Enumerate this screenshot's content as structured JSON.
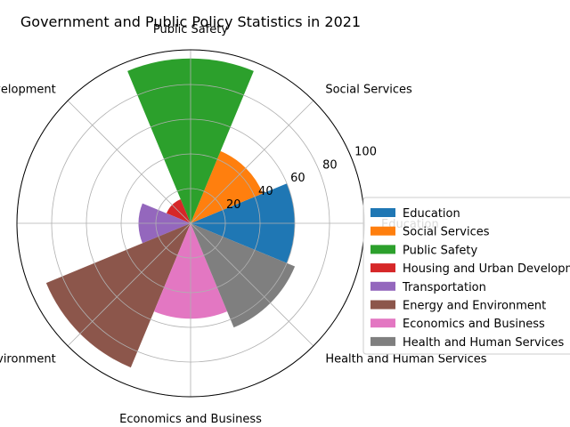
{
  "chart_data": {
    "type": "bar",
    "subtype": "polar",
    "title": "Government and Public Policy Statistics in 2021",
    "categories": [
      "Education",
      "Social Services",
      "Public Safety",
      "Housing and Urban Development",
      "Transportation",
      "Energy and Environment",
      "Economics and Business",
      "Health and Human Services"
    ],
    "values": [
      60,
      45,
      95,
      15,
      30,
      90,
      55,
      65
    ],
    "colors": [
      "#1f77b4",
      "#ff7f0e",
      "#2ca02c",
      "#d62728",
      "#9467bd",
      "#8c564b",
      "#e377c2",
      "#7f7f7f"
    ],
    "r_ticks": [
      "20",
      "40",
      "60",
      "80",
      "100"
    ],
    "rlim": [
      0,
      100
    ],
    "grid": true,
    "legend": {
      "placement": "right",
      "entries": [
        "Education",
        "Social Services",
        "Public Safety",
        "Housing and Urban Development",
        "Transportation",
        "Energy and Environment",
        "Economics and Business",
        "Health and Human Services"
      ]
    }
  }
}
